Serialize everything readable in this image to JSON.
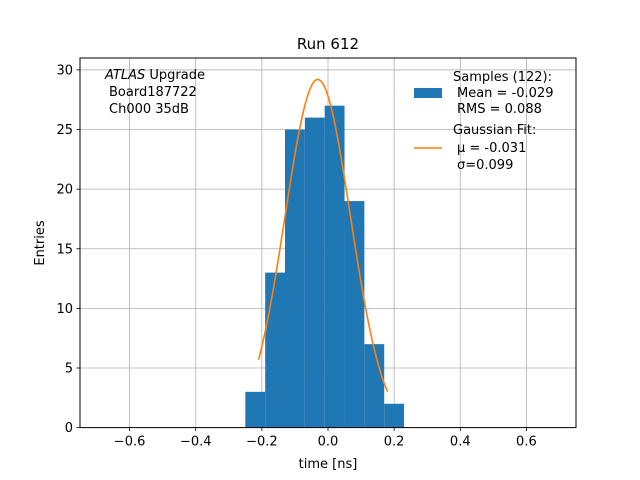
{
  "chart_data": {
    "type": "bar",
    "title": "Run 612",
    "xlabel": "time [ns]",
    "ylabel": "Entries",
    "xlim": [
      -0.75,
      0.75
    ],
    "ylim": [
      0,
      31
    ],
    "xticks": [
      -0.6,
      -0.4,
      -0.2,
      0.0,
      0.2,
      0.4,
      0.6
    ],
    "xtick_labels": [
      "−0.6",
      "−0.4",
      "−0.2",
      "0.0",
      "0.2",
      "0.4",
      "0.6"
    ],
    "yticks": [
      0,
      5,
      10,
      15,
      20,
      25,
      30
    ],
    "ytick_labels": [
      "0",
      "5",
      "10",
      "15",
      "20",
      "25",
      "30"
    ],
    "grid": true,
    "legend_position": "top-right",
    "series": [
      {
        "name": "Samples (122):",
        "type": "histogram",
        "color": "#1f77b4",
        "bin_edges": [
          -0.25,
          -0.19,
          -0.13,
          -0.07,
          -0.01,
          0.05,
          0.11,
          0.17,
          0.23
        ],
        "counts": [
          3,
          13,
          25,
          26,
          27,
          19,
          7,
          2
        ],
        "stats_lines": [
          "Mean = -0.029",
          "RMS = 0.088"
        ]
      },
      {
        "name": "Gaussian Fit:",
        "type": "line",
        "color": "#ff7f0e",
        "mu": -0.031,
        "sigma": 0.099,
        "amplitude": 29.2,
        "x_range": [
          -0.21,
          0.18
        ],
        "params_lines": [
          "μ = -0.031",
          "σ=0.099"
        ]
      }
    ],
    "annotations": {
      "experiment": "ATLAS",
      "experiment_suffix": " Upgrade",
      "board": "Board187722",
      "channel": "Ch000 35dB"
    }
  }
}
